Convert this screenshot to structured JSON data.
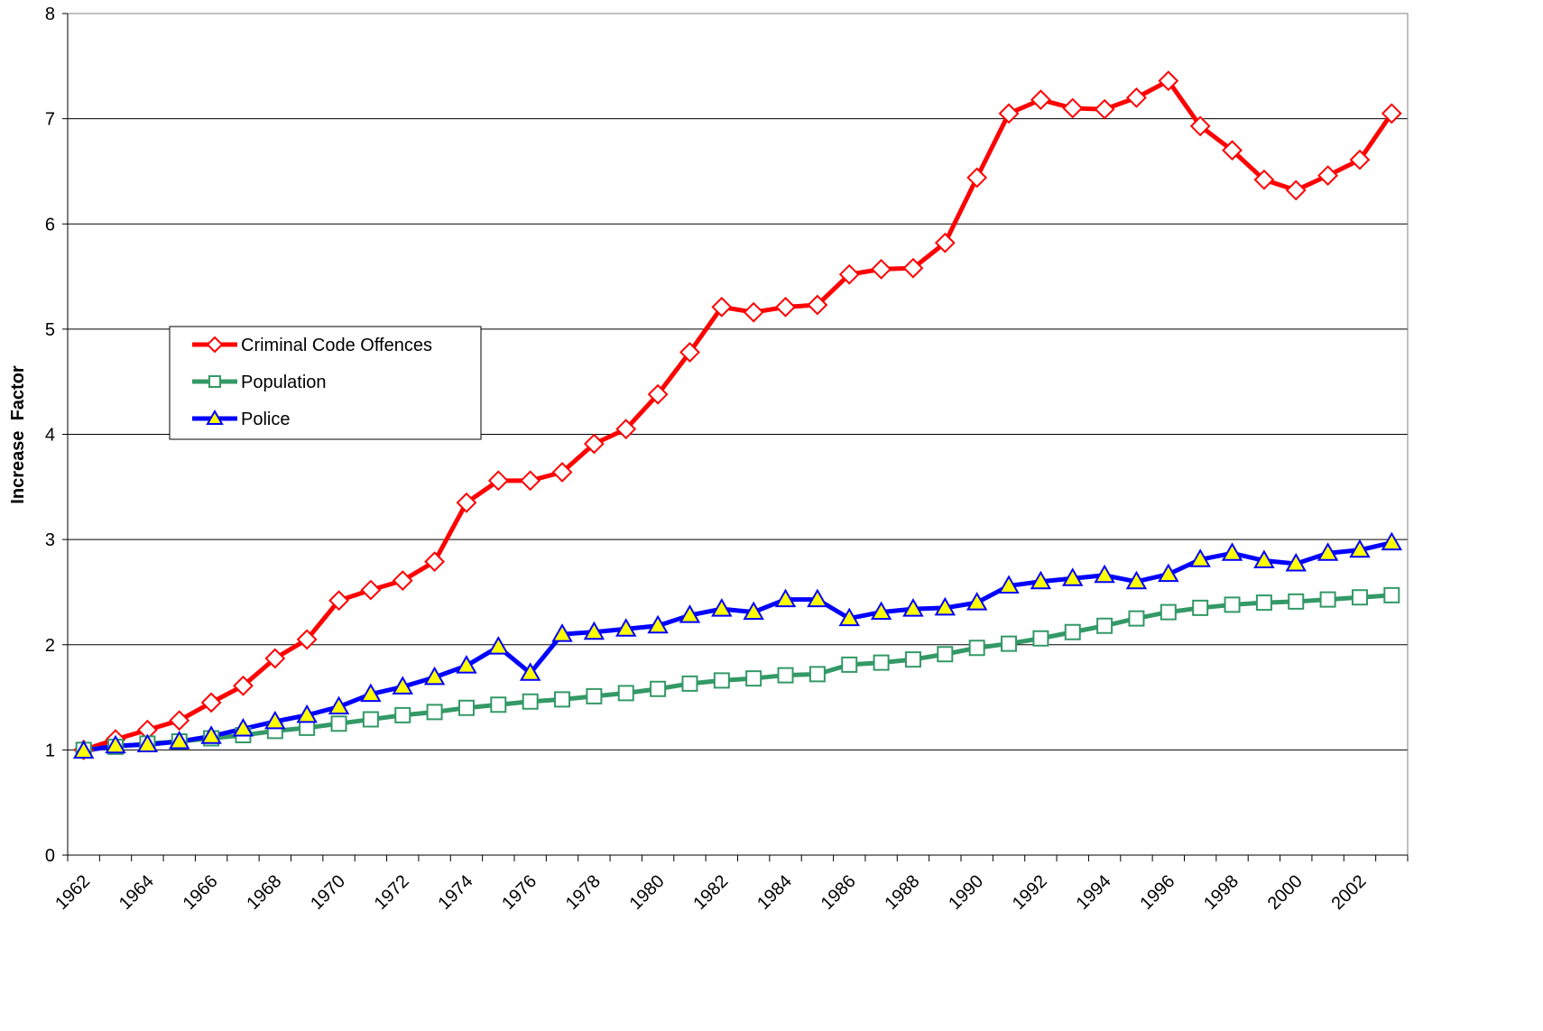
{
  "chart_data": {
    "type": "line",
    "y_label": "Increase  Factor",
    "categories": [
      "1962",
      null,
      "1964",
      null,
      "1966",
      null,
      "1968",
      null,
      "1970",
      null,
      "1972",
      null,
      "1974",
      null,
      "1976",
      null,
      "1978",
      null,
      "1980",
      null,
      "1982",
      null,
      "1984",
      null,
      "1986",
      null,
      "1988",
      null,
      "1990",
      null,
      "1992",
      null,
      "1994",
      null,
      "1996",
      null,
      "1998",
      null,
      "2000",
      null,
      "2002",
      null
    ],
    "ylim": [
      0,
      8
    ],
    "yticks": [
      0,
      1,
      2,
      3,
      4,
      5,
      6,
      7,
      8
    ],
    "grid": true,
    "series": [
      {
        "name": "Criminal Code Offences",
        "color": "#ff0000",
        "marker": "diamond",
        "values": [
          1.0,
          1.1,
          1.19,
          1.28,
          1.45,
          1.61,
          1.87,
          2.05,
          2.42,
          2.52,
          2.61,
          2.79,
          3.35,
          3.56,
          3.56,
          3.64,
          3.91,
          4.05,
          4.38,
          4.78,
          5.21,
          5.16,
          5.21,
          5.23,
          5.52,
          5.57,
          5.58,
          5.82,
          6.44,
          7.05,
          7.18,
          7.1,
          7.09,
          7.2,
          7.36,
          6.93,
          6.7,
          6.42,
          6.32,
          6.46,
          6.61,
          7.05
        ]
      },
      {
        "name": "Population",
        "color": "#339966",
        "marker": "square",
        "values": [
          1.0,
          1.03,
          1.06,
          1.08,
          1.11,
          1.14,
          1.18,
          1.21,
          1.25,
          1.29,
          1.33,
          1.36,
          1.4,
          1.43,
          1.46,
          1.48,
          1.51,
          1.54,
          1.58,
          1.63,
          1.66,
          1.68,
          1.71,
          1.72,
          1.81,
          1.83,
          1.86,
          1.91,
          1.97,
          2.01,
          2.06,
          2.12,
          2.18,
          2.25,
          2.31,
          2.35,
          2.38,
          2.4,
          2.41,
          2.43,
          2.45,
          2.47
        ]
      },
      {
        "name": "Police",
        "color": "#0000ff",
        "marker": "triangle",
        "marker_fill": "#ffff00",
        "values": [
          0.99,
          1.04,
          1.05,
          1.08,
          1.13,
          1.2,
          1.27,
          1.33,
          1.41,
          1.53,
          1.6,
          1.69,
          1.8,
          1.98,
          1.73,
          2.1,
          2.12,
          2.15,
          2.18,
          2.28,
          2.34,
          2.31,
          2.43,
          2.43,
          2.25,
          2.31,
          2.34,
          2.35,
          2.4,
          2.56,
          2.6,
          2.63,
          2.66,
          2.6,
          2.67,
          2.81,
          2.87,
          2.8,
          2.77,
          2.87,
          2.9,
          2.97
        ]
      }
    ]
  }
}
